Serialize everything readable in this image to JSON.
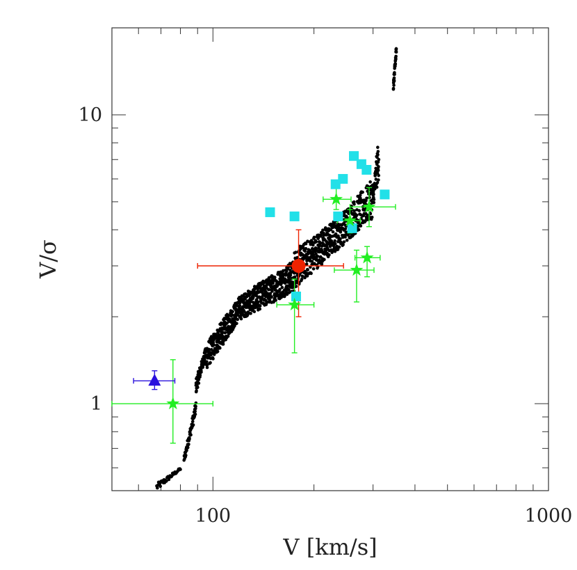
{
  "chart_data": {
    "type": "scatter",
    "title": "",
    "xlabel": "V [km/s]",
    "ylabel": "V/σ",
    "xscale": "log",
    "yscale": "log",
    "xlim": [
      50,
      1000
    ],
    "ylim": [
      0.5,
      20
    ],
    "grid": false,
    "legend": "none",
    "x_tick_labels": [
      {
        "value": 100,
        "label": "100"
      },
      {
        "value": 1000,
        "label": "1000"
      }
    ],
    "y_tick_labels": [
      {
        "value": 1,
        "label": "1"
      },
      {
        "value": 10,
        "label": "10"
      }
    ],
    "colors": {
      "model": "#000000",
      "cyan": "#22e0e8",
      "green": "#22ee22",
      "red": "#ee2200",
      "blue": "#2a10dd",
      "axis": "#333333"
    },
    "series": [
      {
        "marker": "small-dot",
        "color": "#000000",
        "band_segments": [
          {
            "v1": 68,
            "v2": 80,
            "lo1": 0.5,
            "hi1": 0.53,
            "lo2": 0.59,
            "hi2": 0.6,
            "n": 40
          },
          {
            "v1": 82,
            "v2": 89,
            "lo1": 0.62,
            "hi1": 0.66,
            "lo2": 0.92,
            "hi2": 1.02,
            "n": 60
          },
          {
            "v1": 89,
            "v2": 95,
            "lo1": 1.08,
            "hi1": 1.22,
            "lo2": 1.45,
            "hi2": 1.55,
            "n": 80
          },
          {
            "v1": 95,
            "v2": 120,
            "lo1": 1.3,
            "hi1": 1.6,
            "lo2": 1.95,
            "hi2": 2.35,
            "n": 260
          },
          {
            "v1": 120,
            "v2": 175,
            "lo1": 1.95,
            "hi1": 2.35,
            "lo2": 2.45,
            "hi2": 3.15,
            "n": 420
          },
          {
            "v1": 175,
            "v2": 235,
            "lo1": 2.5,
            "hi1": 3.4,
            "lo2": 3.4,
            "hi2": 4.4,
            "n": 300
          },
          {
            "v1": 235,
            "v2": 300,
            "lo1": 3.4,
            "hi1": 4.4,
            "lo2": 4.4,
            "hi2": 6.0,
            "n": 220
          },
          {
            "v1": 300,
            "v2": 312,
            "lo1": 4.8,
            "hi1": 5.5,
            "lo2": 6.0,
            "hi2": 8.5,
            "n": 50
          },
          {
            "v1": 345,
            "v2": 352,
            "lo1": 12.0,
            "hi1": 13.0,
            "lo2": 16.0,
            "hi2": 17.5,
            "n": 40
          }
        ]
      },
      {
        "marker": "square",
        "color": "#22e0e8",
        "points": [
          {
            "x": 148,
            "y": 4.6
          },
          {
            "x": 175,
            "y": 4.45
          },
          {
            "x": 177,
            "y": 2.35
          },
          {
            "x": 232,
            "y": 5.75
          },
          {
            "x": 236,
            "y": 4.45
          },
          {
            "x": 244,
            "y": 6.0
          },
          {
            "x": 260,
            "y": 4.05
          },
          {
            "x": 263,
            "y": 7.2
          },
          {
            "x": 277,
            "y": 6.75
          },
          {
            "x": 287,
            "y": 6.45
          },
          {
            "x": 325,
            "y": 5.3
          }
        ]
      },
      {
        "marker": "star",
        "color": "#22ee22",
        "points": [
          {
            "x": 76,
            "y": 1.0,
            "xerr": [
              50,
              100
            ],
            "yerr": [
              0.73,
              1.42
            ]
          },
          {
            "x": 175,
            "y": 2.2,
            "xerr": [
              155,
              200
            ],
            "yerr": [
              1.5,
              2.7
            ]
          },
          {
            "x": 233,
            "y": 5.1,
            "xerr": [
              213,
              258
            ],
            "yerr": [
              4.7,
              5.8
            ]
          },
          {
            "x": 256,
            "y": 4.3,
            "xerr": [
              235,
              275
            ],
            "yerr": [
              3.9,
              4.7
            ]
          },
          {
            "x": 268,
            "y": 2.9,
            "xerr": [
              230,
              302
            ],
            "yerr": [
              2.25,
              3.4
            ]
          },
          {
            "x": 288,
            "y": 3.2,
            "xerr": [
              265,
              315
            ],
            "yerr": [
              2.75,
              3.5
            ]
          },
          {
            "x": 292,
            "y": 4.8,
            "xerr": [
              256,
              350
            ],
            "yerr": [
              4.1,
              5.6
            ]
          }
        ]
      },
      {
        "marker": "circle",
        "color": "#ee2200",
        "points": [
          {
            "x": 180,
            "y": 3.0,
            "xerr": [
              90,
              245
            ],
            "yerr": [
              2.0,
              4.0
            ]
          }
        ]
      },
      {
        "marker": "triangle",
        "color": "#2a10dd",
        "points": [
          {
            "x": 67,
            "y": 1.2,
            "xerr": [
              58,
              77
            ],
            "yerr": [
              1.12,
              1.3
            ]
          }
        ]
      }
    ]
  }
}
